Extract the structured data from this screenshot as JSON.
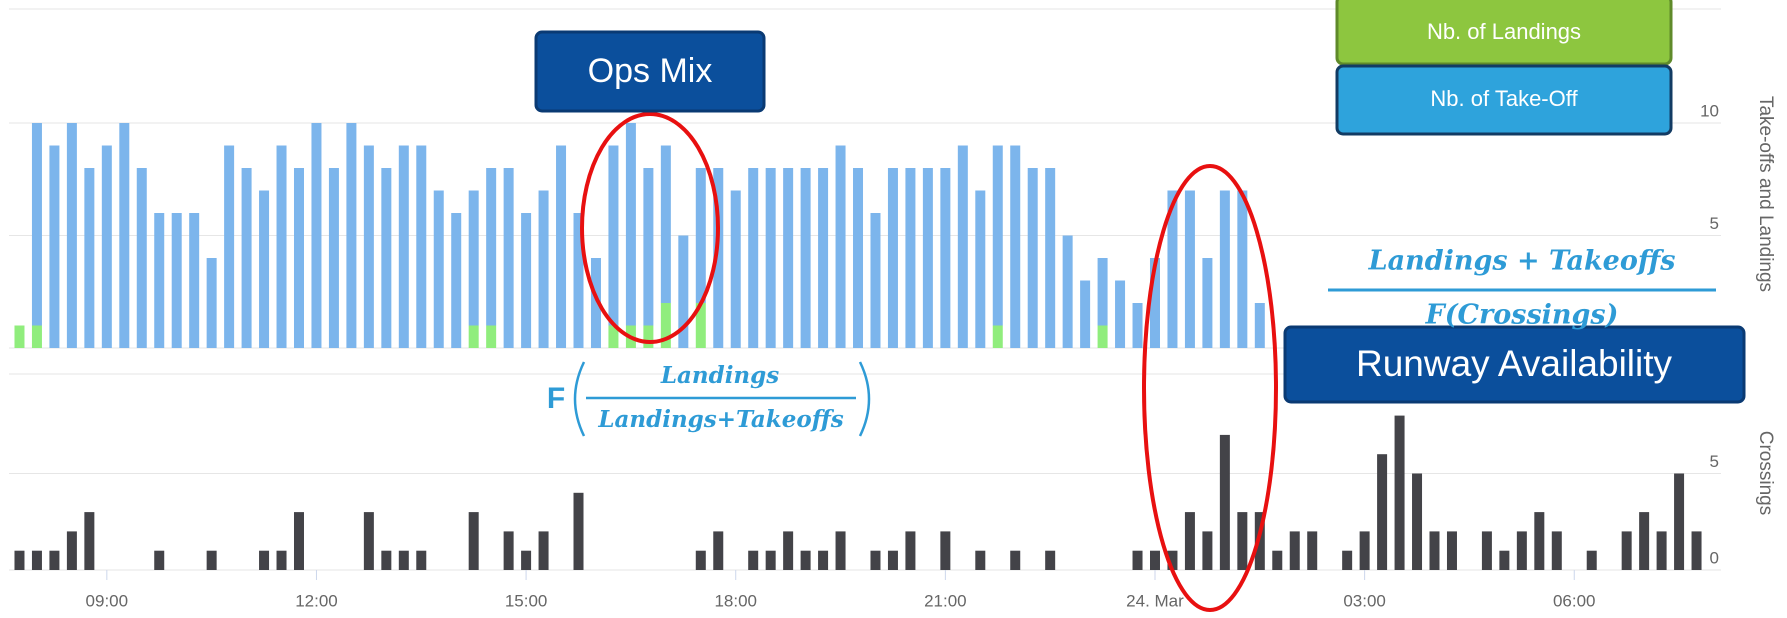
{
  "chart_data": [
    {
      "type": "bar",
      "stacked": true,
      "x": [
        7.75,
        8,
        8.25,
        8.5,
        8.75,
        9,
        9.25,
        9.5,
        9.75,
        10,
        10.25,
        10.5,
        10.75,
        11,
        11.25,
        11.5,
        11.75,
        12,
        12.25,
        12.5,
        12.75,
        13,
        13.25,
        13.5,
        13.75,
        14,
        14.25,
        14.5,
        14.75,
        15,
        15.25,
        15.5,
        15.75,
        16,
        16.25,
        16.5,
        16.75,
        17,
        17.25,
        17.5,
        17.75,
        18,
        18.25,
        18.5,
        18.75,
        19,
        19.25,
        19.5,
        19.75,
        20,
        20.25,
        20.5,
        20.75,
        21,
        21.25,
        21.5,
        21.75,
        22,
        22.25,
        22.5,
        22.75,
        23,
        23.25,
        23.5,
        23.75,
        24,
        24.25,
        24.5,
        24.75,
        25,
        25.25,
        25.5
      ],
      "series": [
        {
          "name": "Nb. of Landings",
          "color": "#90ed7d",
          "values": [
            1,
            1,
            0,
            0,
            0,
            0,
            0,
            0,
            0,
            0,
            0,
            0,
            0,
            0,
            0,
            0,
            0,
            0,
            0,
            0,
            0,
            0,
            0,
            0,
            0,
            0,
            1,
            1,
            0,
            0,
            0,
            0,
            0,
            0,
            1,
            1,
            1,
            2,
            0,
            2,
            0,
            0,
            0,
            0,
            0,
            0,
            0,
            0,
            0,
            0,
            0,
            0,
            0,
            0,
            0,
            0,
            1,
            0,
            0,
            0,
            0,
            0,
            1,
            0,
            0,
            0,
            0,
            0,
            0,
            0,
            0,
            0
          ]
        },
        {
          "name": "Nb. of Take-Off",
          "color": "#7cb5ec",
          "values": [
            0,
            9,
            9,
            10,
            8,
            9,
            10,
            8,
            6,
            6,
            6,
            4,
            9,
            8,
            7,
            9,
            8,
            10,
            8,
            10,
            9,
            8,
            9,
            9,
            7,
            6,
            6,
            7,
            8,
            6,
            7,
            9,
            6,
            4,
            8,
            9,
            7,
            7,
            5,
            6,
            8,
            7,
            8,
            8,
            8,
            8,
            8,
            9,
            8,
            6,
            8,
            8,
            8,
            8,
            9,
            7,
            8,
            9,
            8,
            8,
            5,
            3,
            3,
            3,
            2,
            4,
            7,
            7,
            4,
            7,
            7,
            2
          ]
        }
      ],
      "xlim": [
        7.6,
        32.1
      ],
      "ylim": [
        0,
        15
      ],
      "yticks": [
        5,
        10
      ],
      "grid": true,
      "ylabel": "Take-offs and Landings"
    },
    {
      "type": "bar",
      "x": [
        7.75,
        8,
        8.25,
        8.5,
        8.75,
        9,
        9.25,
        9.5,
        9.75,
        10,
        10.25,
        10.5,
        10.75,
        11,
        11.25,
        11.5,
        11.75,
        12,
        12.25,
        12.5,
        12.75,
        13,
        13.25,
        13.5,
        13.75,
        14,
        14.25,
        14.5,
        14.75,
        15,
        15.25,
        15.5,
        15.75,
        16,
        16.25,
        16.5,
        16.75,
        17,
        17.25,
        17.5,
        17.75,
        18,
        18.25,
        18.5,
        18.75,
        19,
        19.25,
        19.5,
        19.75,
        20,
        20.25,
        20.5,
        20.75,
        21,
        21.25,
        21.5,
        21.75,
        22,
        22.25,
        22.5,
        22.75,
        23,
        23.25,
        23.5,
        23.75,
        24,
        24.25,
        24.5,
        24.75,
        25,
        25.25,
        25.5,
        25.75,
        26,
        26.25,
        26.5,
        26.75,
        27,
        27.25,
        27.5,
        27.75,
        28,
        28.25,
        28.5,
        28.75,
        29,
        29.25,
        29.5,
        29.75,
        30,
        30.25,
        30.5,
        30.75,
        31,
        31.25,
        31.5,
        31.75
      ],
      "series": [
        {
          "color": "#434348",
          "values": [
            1,
            1,
            1,
            2,
            3,
            0,
            0,
            0,
            1,
            0,
            0,
            1,
            0,
            0,
            1,
            1,
            3,
            0,
            0,
            0,
            3,
            1,
            1,
            1,
            0,
            0,
            3,
            0,
            2,
            1,
            2,
            0,
            4,
            0,
            0,
            0,
            0,
            0,
            0,
            1,
            2,
            0,
            1,
            1,
            2,
            1,
            1,
            2,
            0,
            1,
            1,
            2,
            0,
            2,
            0,
            1,
            0,
            1,
            0,
            1,
            0,
            0,
            0,
            0,
            1,
            1,
            1,
            3,
            2,
            7,
            3,
            3,
            1,
            2,
            2,
            0,
            1,
            2,
            6,
            8,
            5,
            2,
            2,
            0,
            2,
            1,
            2,
            3,
            2,
            0,
            1,
            0,
            2,
            3,
            2,
            5,
            2
          ]
        }
      ],
      "xlim": [
        7.6,
        32.1
      ],
      "ylim": [
        0,
        10
      ],
      "yticks": [
        0,
        5
      ],
      "grid": true,
      "xticks": [
        {
          "value": 9,
          "label": "09:00"
        },
        {
          "value": 12,
          "label": "12:00"
        },
        {
          "value": 15,
          "label": "15:00"
        },
        {
          "value": 18,
          "label": "18:00"
        },
        {
          "value": 21,
          "label": "21:00"
        },
        {
          "value": 24,
          "label": "24. Mar"
        },
        {
          "value": 27,
          "label": "03:00"
        },
        {
          "value": 30,
          "label": "06:00"
        }
      ],
      "ylabel": "Crossings"
    }
  ],
  "annotations": {
    "ops_mix": "Ops Mix",
    "runway_availability": "Runway Availability",
    "formula_right": {
      "numerator": "Landings + Takeoffs",
      "denominator": "F(Crossings)"
    },
    "formula_left": {
      "prefix": "F",
      "numerator": "Landings",
      "denominator": "Landings+Takeoffs"
    }
  }
}
